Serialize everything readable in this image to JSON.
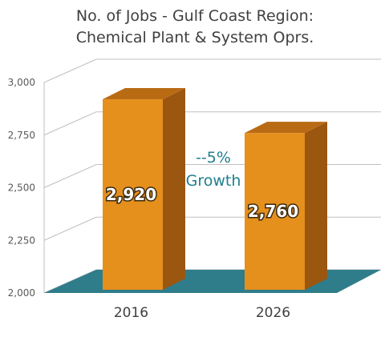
{
  "chart_data": {
    "type": "bar",
    "title": "No. of Jobs - Gulf Coast Region:",
    "subtitle": "Chemical Plant & System Oprs.",
    "categories": [
      "2016",
      "2026"
    ],
    "values": [
      2920,
      2760
    ],
    "data_labels": [
      "2,920",
      "2,760"
    ],
    "yticks": [
      "2,000",
      "2,250",
      "2,500",
      "2,750",
      "3,000"
    ],
    "ytick_values": [
      2000,
      2250,
      2500,
      2750,
      3000
    ],
    "ylim": [
      2000,
      3000
    ],
    "annotation": [
      "--5%",
      "Growth"
    ],
    "grid": true,
    "colors": {
      "bar_front": "#e58f1d",
      "bar_side": "#9b560f",
      "bar_top": "#b96b14",
      "floor": "#2f7d8a",
      "annotation": "#1f7f8c"
    }
  }
}
